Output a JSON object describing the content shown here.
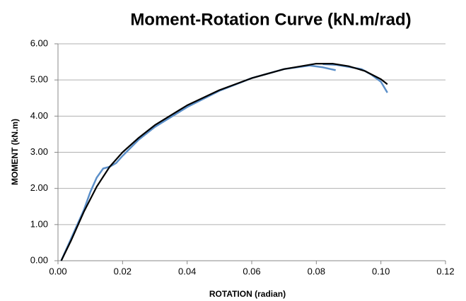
{
  "chart_data": {
    "type": "line",
    "title": "Moment-Rotation Curve (kN.m/rad)",
    "xlabel": "ROTATION (radian)",
    "ylabel": "MOMENT (kN.m)",
    "xlim": [
      0,
      0.12
    ],
    "ylim": [
      0,
      6
    ],
    "xticks": [
      {
        "value": 0,
        "label": "0.00"
      },
      0.02,
      0.04,
      0.06,
      0.08,
      {
        "value": 0.1,
        "label": "0.10"
      },
      0.12
    ],
    "yticks": [
      {
        "value": 0,
        "label": "0.00"
      },
      {
        "value": 1,
        "label": "1.00"
      },
      {
        "value": 2,
        "label": "2.00"
      },
      {
        "value": 3,
        "label": "3.00"
      },
      {
        "value": 4,
        "label": "4.00"
      },
      {
        "value": 5,
        "label": "5.00"
      },
      {
        "value": 6,
        "label": "6.00"
      }
    ],
    "grid": true,
    "series": [
      {
        "color": "#5b8fc9",
        "x": [
          0.001,
          0.002,
          0.004,
          0.006,
          0.008,
          0.01,
          0.012,
          0.014,
          0.016,
          0.018,
          0.02,
          0.025,
          0.03,
          0.04,
          0.05,
          0.06,
          0.07,
          0.078,
          0.082,
          0.086
        ],
        "values": [
          0,
          0.2,
          0.6,
          1.0,
          1.4,
          1.9,
          2.3,
          2.55,
          2.6,
          2.7,
          2.9,
          3.35,
          3.7,
          4.25,
          4.7,
          5.05,
          5.3,
          5.4,
          5.35,
          5.27
        ]
      },
      {
        "color": "#5b8fc9",
        "x": [
          0.082,
          0.086,
          0.09,
          0.094,
          0.097,
          0.1,
          0.102
        ],
        "values": [
          5.44,
          5.42,
          5.36,
          5.3,
          5.15,
          4.95,
          4.65
        ]
      },
      {
        "color": "#000000",
        "x": [
          0.001,
          0.004,
          0.008,
          0.012,
          0.016,
          0.02,
          0.025,
          0.03,
          0.04,
          0.05,
          0.06,
          0.07,
          0.08,
          0.085,
          0.09,
          0.095,
          0.1,
          0.102
        ],
        "values": [
          0,
          0.55,
          1.35,
          2.05,
          2.6,
          3.0,
          3.4,
          3.75,
          4.3,
          4.72,
          5.05,
          5.3,
          5.45,
          5.45,
          5.38,
          5.25,
          5.02,
          4.88
        ]
      }
    ]
  }
}
